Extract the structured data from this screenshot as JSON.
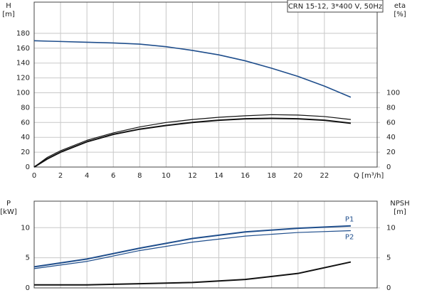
{
  "chart_data": [
    {
      "type": "line",
      "legend_title": "CRN 15-12, 3*400 V, 50Hz",
      "ylabel": [
        "H",
        "[m]"
      ],
      "y2label": [
        "eta",
        "[%]"
      ],
      "xlabel": "Q [m³/h]",
      "x": [
        0,
        1,
        2,
        4,
        6,
        8,
        10,
        12,
        14,
        16,
        18,
        20,
        22,
        24
      ],
      "xlim": [
        0,
        26
      ],
      "xticks": [
        0,
        2,
        4,
        6,
        8,
        10,
        12,
        14,
        16,
        18,
        20,
        22
      ],
      "ylim": [
        0,
        222
      ],
      "yticks": [
        0,
        20,
        40,
        60,
        80,
        100,
        120,
        140,
        160,
        180
      ],
      "y2lim": [
        0,
        222
      ],
      "y2ticks": [
        0,
        20,
        40,
        60,
        80,
        100
      ],
      "grid": true,
      "series": [
        {
          "color": "#1f4e8c",
          "width": 1.6,
          "values": [
            170,
            169.5,
            169,
            168,
            167,
            165.5,
            162,
            157,
            151,
            143,
            133,
            122,
            109,
            94
          ]
        },
        {
          "color": "#111111",
          "width": 1.2,
          "axis": "y2",
          "values": [
            0,
            13,
            22,
            36,
            46,
            54,
            60,
            64,
            67,
            69,
            70.5,
            70,
            68,
            64
          ]
        },
        {
          "color": "#111111",
          "width": 2,
          "axis": "y2",
          "values": [
            0,
            11,
            20,
            34,
            44,
            51,
            56,
            60,
            63,
            65,
            65.5,
            65,
            63,
            59
          ]
        }
      ]
    },
    {
      "type": "line",
      "ylabel": [
        "P",
        "[kW]"
      ],
      "y2label": [
        "NPSH",
        "[m]"
      ],
      "x": [
        0,
        4,
        8,
        12,
        16,
        20,
        24
      ],
      "xlim": [
        0,
        26
      ],
      "ylim": [
        0,
        14.4
      ],
      "yticks": [
        0,
        5,
        10
      ],
      "y2lim": [
        0,
        14.4
      ],
      "y2ticks": [
        0,
        5,
        10
      ],
      "grid": true,
      "series": [
        {
          "name": "P1",
          "color": "#1f4e8c",
          "width": 2,
          "values": [
            3.5,
            4.8,
            6.6,
            8.2,
            9.3,
            9.9,
            10.3
          ]
        },
        {
          "name": "P2",
          "color": "#1f4e8c",
          "width": 1.2,
          "values": [
            3.2,
            4.4,
            6.2,
            7.6,
            8.6,
            9.2,
            9.5
          ]
        },
        {
          "color": "#111111",
          "width": 2,
          "axis": "y2",
          "values": [
            0.5,
            0.5,
            0.7,
            0.9,
            1.4,
            2.4,
            4.3
          ]
        }
      ]
    }
  ]
}
